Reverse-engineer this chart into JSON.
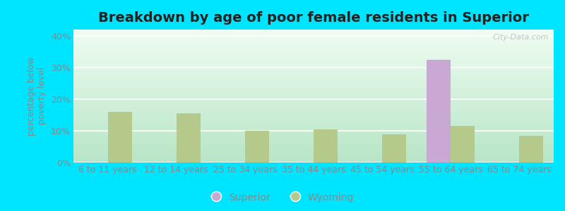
{
  "title": "Breakdown by age of poor female residents in Superior",
  "ylabel": "percentage below\npoverty level",
  "categories": [
    "6 to 11 years",
    "12 to 14 years",
    "25 to 34 years",
    "35 to 44 years",
    "45 to 54 years",
    "55 to 64 years",
    "65 to 74 years"
  ],
  "superior_values": [
    0,
    0,
    0,
    0,
    0,
    32.5,
    0
  ],
  "wyoming_values": [
    16.0,
    15.5,
    10.0,
    10.5,
    9.0,
    11.5,
    8.5
  ],
  "superior_color": "#c9a8d4",
  "wyoming_color": "#b5c98a",
  "bg_top_left": "#b8e8c8",
  "bg_top_right": "#f0f8f0",
  "bg_bottom_left": "#c8ecd4",
  "bg_bottom_right": "#ffffff",
  "outer_bg": "#00e5ff",
  "ylim": [
    0,
    42
  ],
  "yticks": [
    0,
    10,
    20,
    30,
    40
  ],
  "ytick_labels": [
    "0%",
    "10%",
    "20%",
    "30%",
    "40%"
  ],
  "title_fontsize": 14,
  "axis_label_fontsize": 9,
  "tick_fontsize": 9,
  "legend_fontsize": 10,
  "bar_width": 0.35,
  "watermark": "City-Data.com",
  "label_color": "#888888",
  "grid_color": "#dddddd"
}
